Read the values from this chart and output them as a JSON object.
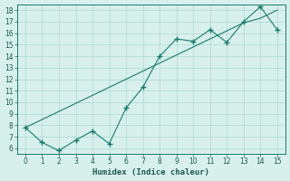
{
  "title": "",
  "xlabel": "Humidex (Indice chaleur)",
  "x": [
    0,
    1,
    2,
    3,
    4,
    5,
    6,
    7,
    8,
    9,
    10,
    11,
    12,
    13,
    14,
    15
  ],
  "smooth_y": [
    7.8,
    8.5,
    9.2,
    9.9,
    10.6,
    11.3,
    12.0,
    12.7,
    13.4,
    14.1,
    14.8,
    15.5,
    16.2,
    16.9,
    17.3,
    18.0
  ],
  "jagged_y": [
    7.8,
    6.5,
    5.8,
    6.7,
    7.5,
    6.4,
    9.5,
    11.3,
    14.0,
    15.5,
    15.3,
    16.3,
    15.2,
    17.0,
    18.3,
    16.3
  ],
  "ylim": [
    5.5,
    18.5
  ],
  "xlim": [
    -0.5,
    15.5
  ],
  "yticks": [
    6,
    7,
    8,
    9,
    10,
    11,
    12,
    13,
    14,
    15,
    16,
    17,
    18
  ],
  "xticks": [
    0,
    1,
    2,
    3,
    4,
    5,
    6,
    7,
    8,
    9,
    10,
    11,
    12,
    13,
    14,
    15
  ],
  "line_color": "#1a7a6e",
  "bg_color": "#d8f0ec",
  "grid_color": "#aad8d0",
  "marker": "+",
  "marker_size": 4,
  "font_color": "#1a5a50"
}
